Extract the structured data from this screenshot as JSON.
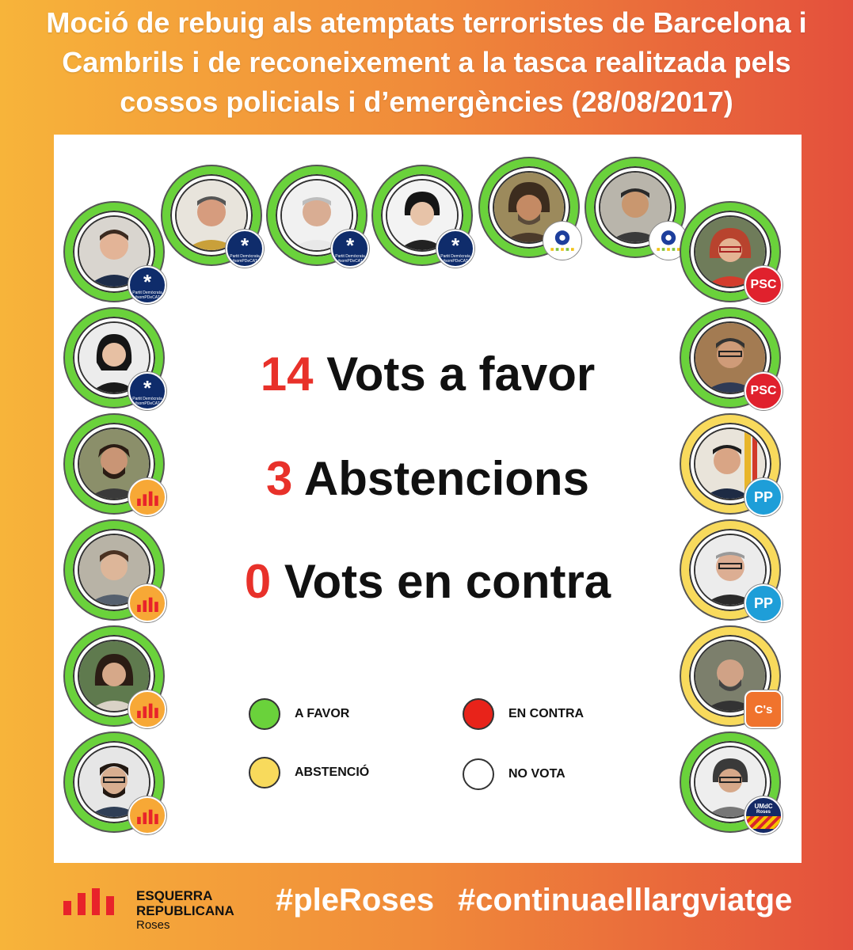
{
  "title": "Moció de rebuig als atemptats terroristes de Barcelona i Cambrils i de reconeixement a la tasca realitzada pels cossos policials i d’emergències (28/08/2017)",
  "stats": [
    {
      "value": "14",
      "label": "Vots a favor"
    },
    {
      "value": "3",
      "label": "Abstencions"
    },
    {
      "value": "0",
      "label": "Vots en contra"
    }
  ],
  "legend": [
    {
      "label": "A FAVOR",
      "color": "#6ad23b"
    },
    {
      "label": "EN CONTRA",
      "color": "#e8231a"
    },
    {
      "label": "ABSTENCIÓ",
      "color": "#f8da5c"
    },
    {
      "label": "NO VOTA",
      "color": "#ffffff"
    }
  ],
  "parties": {
    "pdecat": {
      "line1": "Partit Demòcrata",
      "line2": "#somPDeCAT"
    },
    "psc": "PSC",
    "pp": "PP",
    "cs": "C's",
    "umdc": {
      "line1": "UMdC",
      "line2": "Roses"
    }
  },
  "colors": {
    "favor": "#6ad23b",
    "abstencio": "#f8da5c",
    "accent": "#e8312a"
  },
  "footer": {
    "party_line1": "ESQUERRA",
    "party_line2": "REPUBLICANA",
    "town": "Roses",
    "hashtag1": "#pleRoses",
    "hashtag2": "#continuaelllargviatge"
  }
}
